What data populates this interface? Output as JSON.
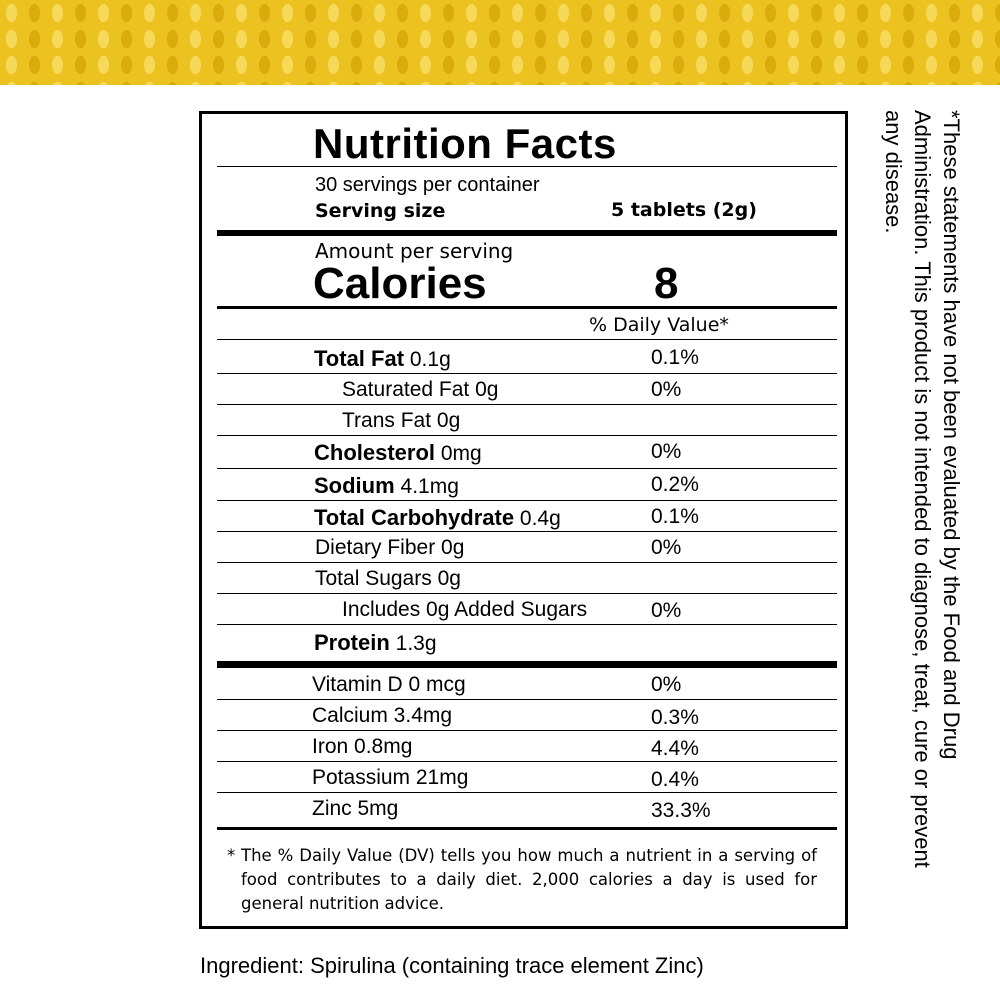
{
  "label": {
    "title": "Nutrition Facts",
    "servings_per_container": "30 servings per container",
    "serving_size_label": "Serving size",
    "serving_size_value": "5 tablets (2g)",
    "amount_per_serving": "Amount per serving",
    "calories_label": "Calories",
    "calories_value": "8",
    "daily_value_header": "% Daily Value*",
    "nutrients": [
      {
        "name": "Total Fat",
        "amount": "0.1g",
        "dv": "0.1%"
      },
      {
        "name": "Saturated Fat 0g",
        "dv": "0%"
      },
      {
        "name": "Trans Fat 0g",
        "dv": ""
      },
      {
        "name": "Cholesterol",
        "amount": "0mg",
        "dv": "0%"
      },
      {
        "name": "Sodium",
        "amount": "4.1mg",
        "dv": "0.2%"
      },
      {
        "name": "Total Carbohydrate",
        "amount": "0.4g",
        "dv": "0.1%"
      },
      {
        "name": "Dietary Fiber 0g",
        "dv": "0%"
      },
      {
        "name": "Total Sugars 0g",
        "dv": ""
      },
      {
        "name": "Includes 0g Added Sugars",
        "dv": "0%"
      },
      {
        "name": "Protein",
        "amount": "1.3g",
        "dv": ""
      }
    ],
    "vitamins": [
      {
        "name": "Vitamin D 0 mcg",
        "dv": "0%"
      },
      {
        "name": "Calcium 3.4mg",
        "dv": "0.3%"
      },
      {
        "name": "Iron 0.8mg",
        "dv": "4.4%"
      },
      {
        "name": "Potassium 21mg",
        "dv": "0.4%"
      },
      {
        "name": "Zinc 5mg",
        "dv": "33.3%"
      }
    ],
    "footnote_star": "*",
    "footnote": "The % Daily Value (DV) tells you how much a nutrient in a serving of food contributes to a daily diet. 2,000 calories a day is used for general nutrition advice."
  },
  "ingredient": "Ingredient: Spirulina (containing trace element Zinc)",
  "disclaimer": "*These statements have not been evaluated by the Food and Drug Administration. This product is not intended to diagnose, treat, cure or prevent any disease.",
  "colors": {
    "banner": "#ebc21f",
    "text": "#000000"
  }
}
